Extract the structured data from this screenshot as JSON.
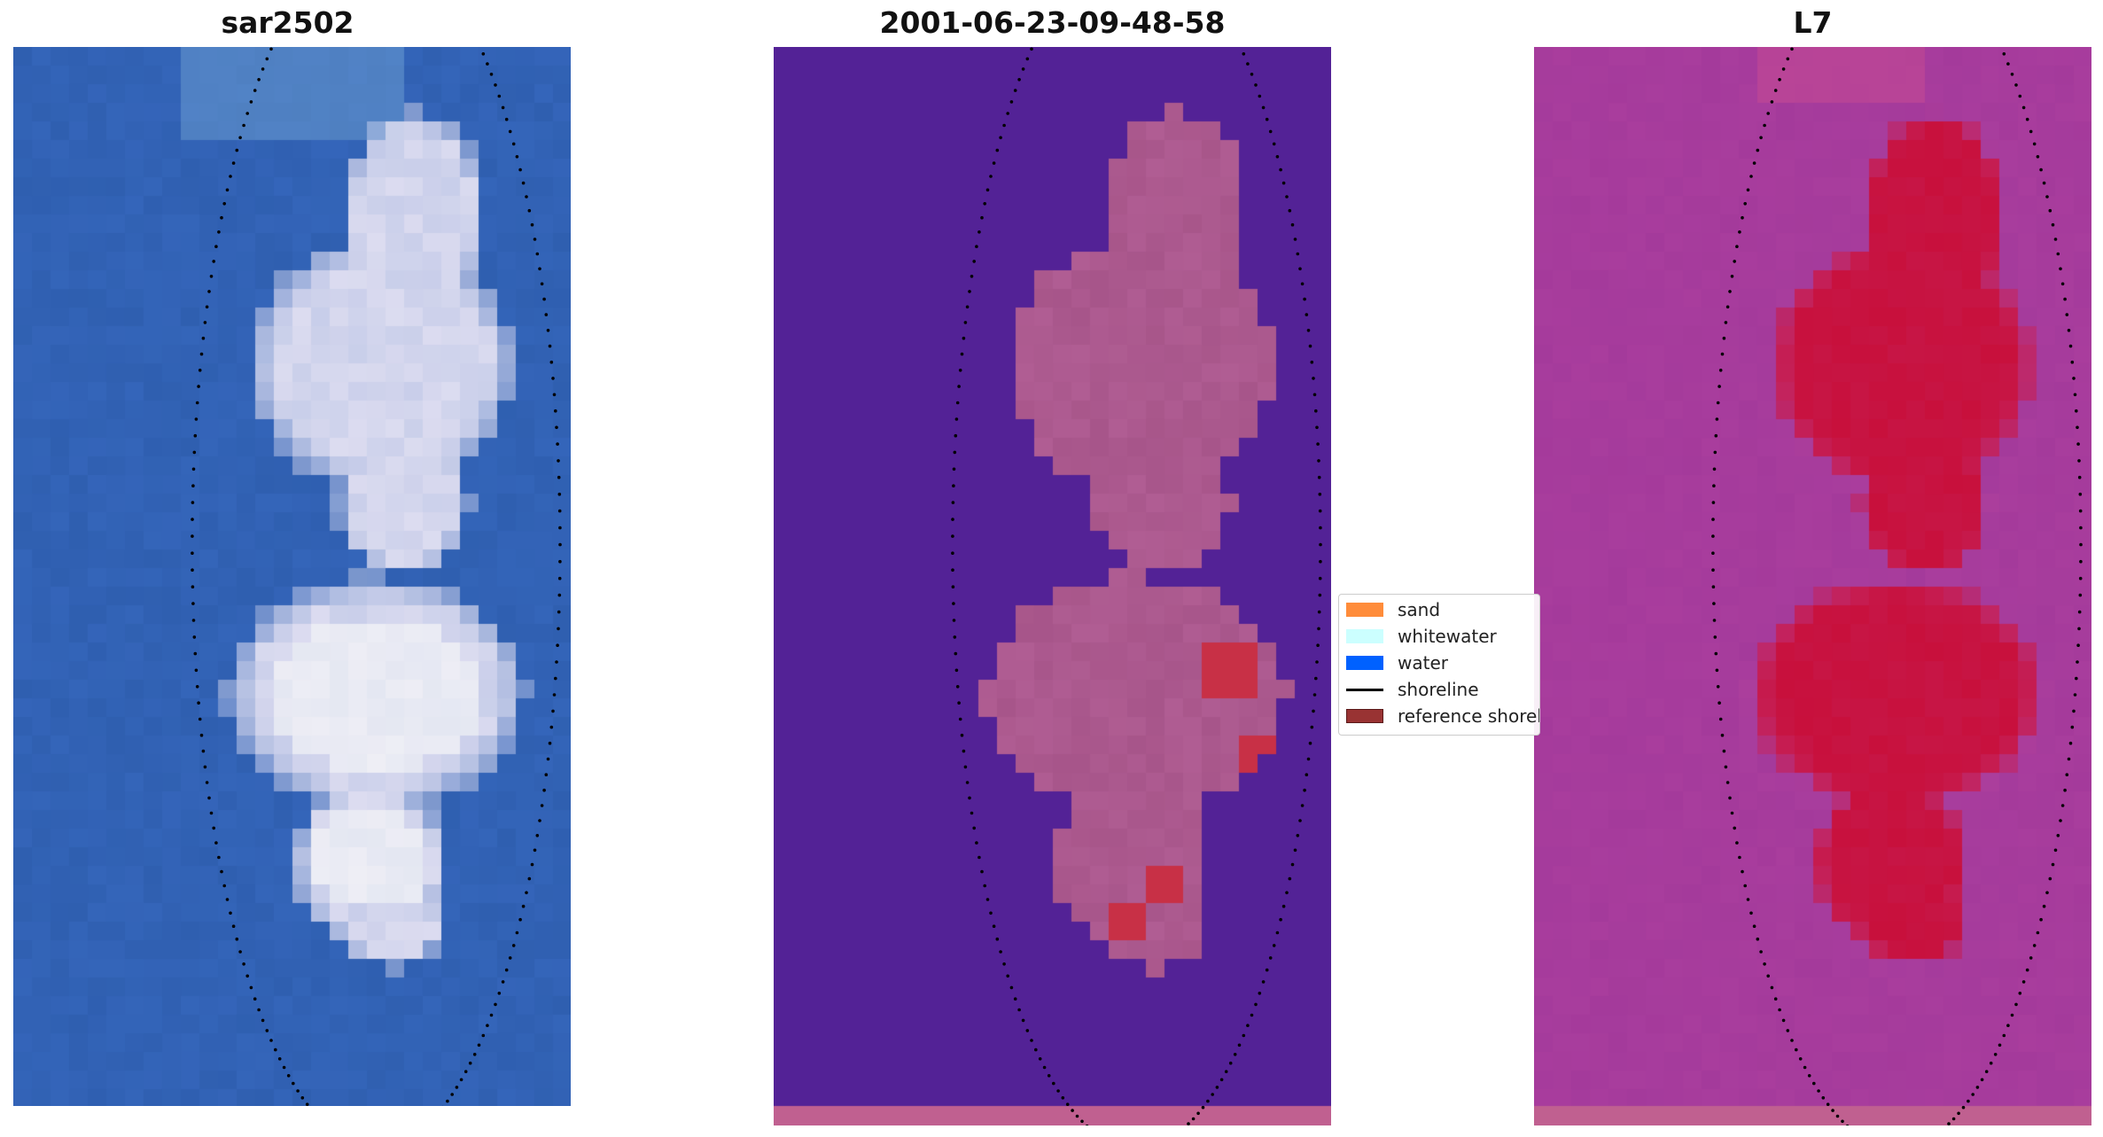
{
  "panels": [
    {
      "title": "sar2502",
      "kind": "rgb"
    },
    {
      "title": "2001-06-23-09-48-58",
      "kind": "classified"
    },
    {
      "title": "L7",
      "kind": "index"
    }
  ],
  "legend": {
    "items": [
      {
        "label": "sand",
        "color": "#ff8c3a"
      },
      {
        "label": "whitewater",
        "color": "#ccffff"
      },
      {
        "label": "water",
        "color": "#0061ff"
      },
      {
        "label": "shoreline",
        "color": "#000000"
      },
      {
        "label": "reference shoreline",
        "color": "#993333"
      }
    ]
  },
  "colors": {
    "rgb_water": "#2f5fb0",
    "rgb_sand": "#dcdcf0",
    "class_water": "#532296",
    "class_sand": "#b05d93",
    "class_red": "#c83046",
    "class_bottom_strip": "#c06090",
    "index_background": "#8a2ea0",
    "index_core": "#c8103c",
    "shoreline_dots": "#000000"
  }
}
